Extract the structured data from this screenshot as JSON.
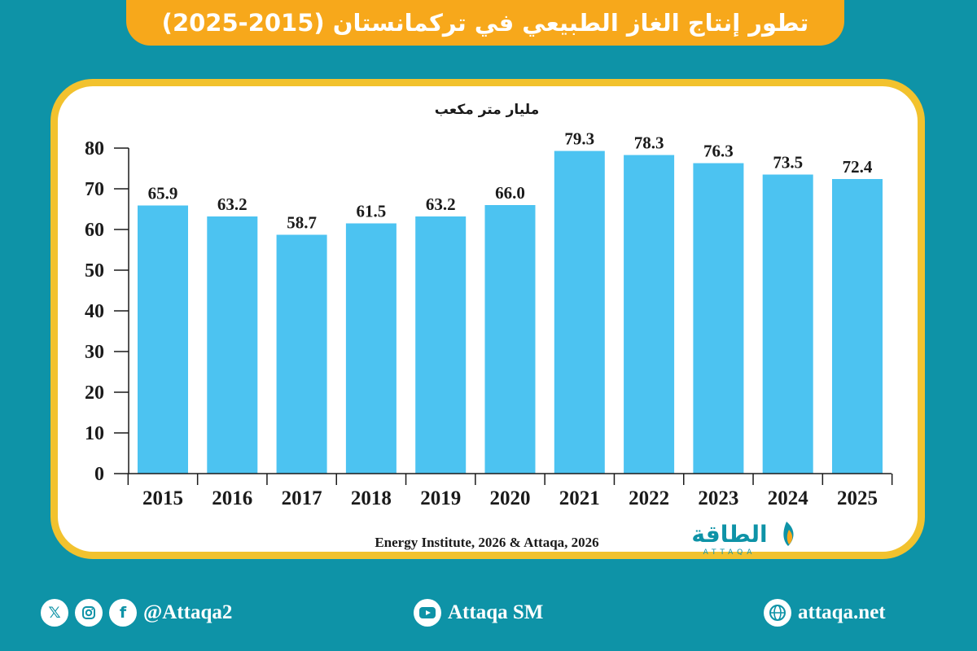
{
  "title": "تطور إنتاج الغاز الطبيعي في تركمانستان (2015-2025)",
  "source": "Energy Institute, 2026 & Attaqa, 2026",
  "logo": {
    "arabic": "الطاقة",
    "latin": "ATTAQA"
  },
  "footer": {
    "social_handle": "@Attaqa2",
    "youtube_label": "Attaqa SM",
    "website_label": "attaqa.net"
  },
  "colors": {
    "background": "#0e93a7",
    "banner": "#f7a81b",
    "card_border": "#f2c22e",
    "bar": "#4cc3f1",
    "text": "#1a1a1a"
  },
  "chart_data": {
    "type": "bar",
    "categories": [
      "2015",
      "2016",
      "2017",
      "2018",
      "2019",
      "2020",
      "2021",
      "2022",
      "2023",
      "2024",
      "2025"
    ],
    "values": [
      65.9,
      63.2,
      58.7,
      61.5,
      63.2,
      66.0,
      79.3,
      78.3,
      76.3,
      73.5,
      72.4
    ],
    "value_labels": [
      "65.9",
      "63.2",
      "58.7",
      "61.5",
      "63.2",
      "66.0",
      "79.3",
      "78.3",
      "76.3",
      "73.5",
      "72.4"
    ],
    "ylabel": "مليار متر مكعب",
    "ylim": [
      0,
      80
    ],
    "yticks": [
      "0",
      "10",
      "20",
      "30",
      "40",
      "50",
      "60",
      "70",
      "80"
    ],
    "grid": false,
    "legend": "none"
  }
}
